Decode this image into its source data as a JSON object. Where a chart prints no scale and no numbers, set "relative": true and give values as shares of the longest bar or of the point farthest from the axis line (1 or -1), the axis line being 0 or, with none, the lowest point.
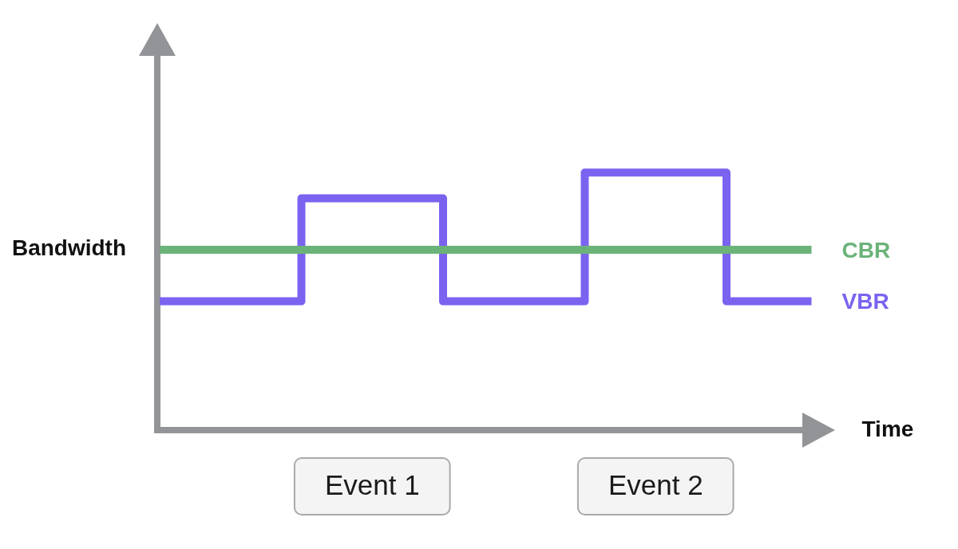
{
  "chart_data": {
    "type": "step",
    "relative": true,
    "ylabel": "Bandwidth",
    "xlabel": "Time",
    "categories": [
      null,
      null,
      null,
      null,
      null,
      null,
      null,
      null,
      null,
      null,
      null,
      null,
      null,
      null,
      null,
      null,
      null,
      null,
      null,
      null,
      null,
      null,
      null,
      null
    ],
    "series": [
      {
        "name": "CBR",
        "color": "#6cb37a",
        "values": [
          0.7,
          0.7,
          0.7,
          0.7,
          0.7,
          0.7,
          0.7,
          0.7,
          0.7,
          0.7,
          0.7,
          0.7,
          0.7,
          0.7,
          0.7,
          0.7,
          0.7,
          0.7,
          0.7,
          0.7,
          0.7,
          0.7,
          0.7,
          0.7
        ]
      },
      {
        "name": "VBR",
        "color": "#7b63f0",
        "values": [
          0.5,
          0.5,
          0.5,
          0.5,
          0.5,
          0.9,
          0.9,
          0.9,
          0.9,
          0.9,
          0.5,
          0.5,
          0.5,
          0.5,
          0.5,
          1,
          1,
          1,
          1,
          1,
          0.5,
          0.5,
          0.5,
          0.5
        ]
      }
    ],
    "annotations": [
      "Event 1",
      "Event 2"
    ]
  }
}
